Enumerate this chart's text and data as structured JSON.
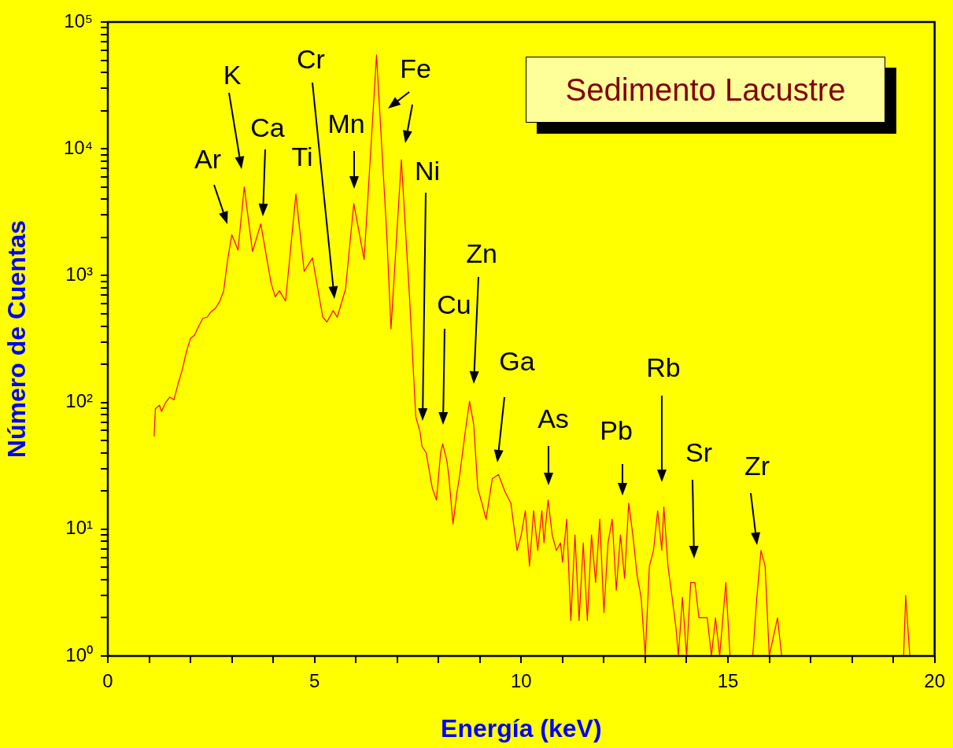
{
  "chart_data": {
    "type": "line",
    "title": "Sedimento Lacustre",
    "xlabel": "Energía (keV)",
    "ylabel": "Número de Cuentas",
    "series": [
      {
        "color": "#ff0000",
        "x": [
          1.12,
          1.15,
          1.25,
          1.3,
          1.4,
          1.5,
          1.6,
          1.7,
          1.8,
          1.9,
          2.0,
          2.1,
          2.2,
          2.3,
          2.4,
          2.5,
          2.6,
          2.7,
          2.8,
          2.9,
          3.0,
          3.15,
          3.3,
          3.5,
          3.7,
          3.95,
          4.05,
          4.15,
          4.3,
          4.55,
          4.75,
          4.95,
          5.2,
          5.3,
          5.45,
          5.55,
          5.75,
          5.95,
          6.2,
          6.5,
          6.75,
          6.85,
          7.1,
          7.3,
          7.45,
          7.55,
          7.6,
          7.7,
          7.85,
          7.95,
          8.05,
          8.1,
          8.2,
          8.25,
          8.35,
          8.45,
          8.5,
          8.65,
          8.75,
          8.85,
          8.95,
          9.05,
          9.15,
          9.3,
          9.45,
          9.6,
          9.75,
          9.9,
          10.0,
          10.1,
          10.2,
          10.3,
          10.4,
          10.5,
          10.55,
          10.65,
          10.75,
          10.85,
          10.95,
          11.0,
          11.1,
          11.2,
          11.3,
          11.4,
          11.5,
          11.6,
          11.7,
          11.8,
          11.9,
          12.0,
          12.1,
          12.2,
          12.3,
          12.4,
          12.5,
          12.6,
          12.7,
          12.8,
          12.9,
          13.0,
          13.1,
          13.2,
          13.3,
          13.4,
          13.45,
          13.55,
          13.65,
          13.75,
          13.8,
          13.9,
          14.0,
          14.1,
          14.2,
          14.3,
          14.5,
          14.6,
          14.7,
          14.8,
          14.95,
          15.05,
          15.6,
          15.7,
          15.8,
          15.9,
          16.0,
          16.2,
          16.3,
          19.25,
          19.3,
          19.4
        ],
        "values": [
          54,
          89,
          95,
          85,
          100,
          110,
          105,
          140,
          180,
          250,
          320,
          340,
          400,
          460,
          470,
          520,
          550,
          620,
          750,
          1340,
          2100,
          1590,
          5000,
          1550,
          2560,
          870,
          680,
          760,
          630,
          4400,
          1080,
          1380,
          470,
          430,
          530,
          470,
          780,
          3700,
          1340,
          55000,
          2050,
          380,
          8200,
          660,
          77,
          59,
          45,
          40,
          21,
          17,
          40,
          47,
          35,
          26,
          11,
          20,
          25,
          60,
          102,
          67,
          21,
          16,
          12,
          25,
          27,
          20,
          16,
          6.8,
          9,
          14,
          5.1,
          14,
          6.8,
          14,
          7.8,
          17,
          9,
          6.8,
          7.8,
          5.5,
          12,
          1.9,
          9,
          1.9,
          7.8,
          1.9,
          9,
          3.8,
          12,
          2.2,
          7.8,
          12,
          3.3,
          9,
          4.1,
          16,
          9,
          4.4,
          2.9,
          1,
          5.1,
          6.8,
          14,
          6.8,
          15,
          5.1,
          2.9,
          1.6,
          1,
          2.9,
          1,
          3.8,
          3.8,
          2,
          2,
          1,
          2,
          1,
          3.8,
          1,
          1,
          2.9,
          6.8,
          5.1,
          1,
          2,
          1,
          1,
          3,
          1
        ]
      }
    ],
    "xlim": [
      0,
      20
    ],
    "xticks": [
      0,
      {
        "value": 1,
        "label": null
      },
      {
        "value": 2,
        "label": null
      },
      {
        "value": 3,
        "label": null
      },
      {
        "value": 4,
        "label": null
      },
      5,
      {
        "value": 6,
        "label": null
      },
      {
        "value": 7,
        "label": null
      },
      {
        "value": 8,
        "label": null
      },
      {
        "value": 9,
        "label": null
      },
      10,
      {
        "value": 11,
        "label": null
      },
      {
        "value": 12,
        "label": null
      },
      {
        "value": 13,
        "label": null
      },
      {
        "value": 14,
        "label": null
      },
      15,
      {
        "value": 16,
        "label": null
      },
      {
        "value": 17,
        "label": null
      },
      {
        "value": 18,
        "label": null
      },
      {
        "value": 19,
        "label": null
      },
      20
    ],
    "log": "y",
    "ylim": [
      1,
      100000
    ],
    "yticks": [
      {
        "value": 1,
        "label": "10⁰"
      },
      {
        "value": 2,
        "label": null
      },
      {
        "value": 3,
        "label": null
      },
      {
        "value": 4,
        "label": null
      },
      {
        "value": 5,
        "label": null
      },
      {
        "value": 6,
        "label": null
      },
      {
        "value": 7,
        "label": null
      },
      {
        "value": 8,
        "label": null
      },
      {
        "value": 9,
        "label": null
      },
      {
        "value": 10,
        "label": "10¹"
      },
      {
        "value": 20,
        "label": null
      },
      {
        "value": 30,
        "label": null
      },
      {
        "value": 40,
        "label": null
      },
      {
        "value": 50,
        "label": null
      },
      {
        "value": 60,
        "label": null
      },
      {
        "value": 70,
        "label": null
      },
      {
        "value": 80,
        "label": null
      },
      {
        "value": 90,
        "label": null
      },
      {
        "value": 100,
        "label": "10²"
      },
      {
        "value": 200,
        "label": null
      },
      {
        "value": 300,
        "label": null
      },
      {
        "value": 400,
        "label": null
      },
      {
        "value": 500,
        "label": null
      },
      {
        "value": 600,
        "label": null
      },
      {
        "value": 700,
        "label": null
      },
      {
        "value": 800,
        "label": null
      },
      {
        "value": 900,
        "label": null
      },
      {
        "value": 1000,
        "label": "10³"
      },
      {
        "value": 2000,
        "label": null
      },
      {
        "value": 3000,
        "label": null
      },
      {
        "value": 4000,
        "label": null
      },
      {
        "value": 5000,
        "label": null
      },
      {
        "value": 6000,
        "label": null
      },
      {
        "value": 7000,
        "label": null
      },
      {
        "value": 8000,
        "label": null
      },
      {
        "value": 9000,
        "label": null
      },
      {
        "value": 10000,
        "label": "10⁴"
      },
      {
        "value": 20000,
        "label": null
      },
      {
        "value": 30000,
        "label": null
      },
      {
        "value": 40000,
        "label": null
      },
      {
        "value": 50000,
        "label": null
      },
      {
        "value": 60000,
        "label": null
      },
      {
        "value": 70000,
        "label": null
      },
      {
        "value": 80000,
        "label": null
      },
      {
        "value": 90000,
        "label": null
      },
      {
        "value": 100000,
        "label": "10⁵"
      }
    ],
    "grid": false,
    "legend": false,
    "marker": "none",
    "line_style": "solid",
    "annotations": [
      "Ar",
      "K",
      "Ca",
      "Ti",
      "Cr",
      "Mn",
      "Fe",
      "Ni",
      "Cu",
      "Zn",
      "Ga",
      "As",
      "Pb",
      "Rb",
      "Sr",
      "Zr"
    ]
  }
}
